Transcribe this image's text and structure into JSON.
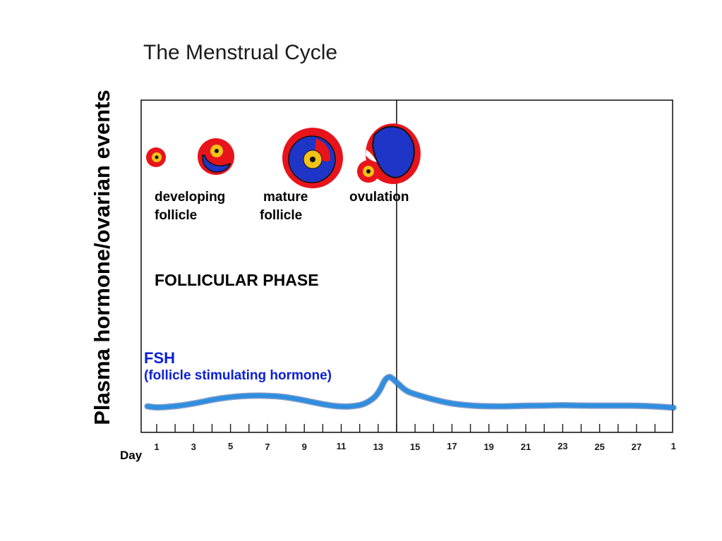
{
  "title": "The Menstrual Cycle",
  "y_axis_label": "Plasma hormone/ovarian events",
  "x_axis_label": "Day",
  "stage_labels": {
    "developing": [
      "developing",
      "follicle"
    ],
    "mature": [
      "mature",
      "follicle"
    ],
    "ovulation": "ovulation"
  },
  "phase_label": "FOLLICULAR PHASE",
  "hormone": {
    "name": "FSH",
    "full_name": "(follicle stimulating hormone)"
  },
  "colors": {
    "follicle_outer": "#e8141b",
    "follicle_fluid": "#1e35c8",
    "oocyte": "#f2c21a",
    "fsh_line": "#2e8ee0",
    "fsh_label": "#0a1fd6"
  },
  "chart_data": {
    "type": "line",
    "x_ticks": [
      "1",
      "3",
      "5",
      "7",
      "9",
      "11",
      "13",
      "15",
      "17",
      "19",
      "21",
      "23",
      "25",
      "27",
      "1"
    ],
    "marker_day": 14,
    "series": [
      {
        "x": [
          0.5,
          1,
          2,
          3,
          4,
          5,
          6,
          7,
          8,
          9,
          10,
          11,
          12,
          12.5,
          13,
          13.5,
          14,
          14.5,
          15,
          16,
          17,
          18,
          19,
          20,
          21,
          22,
          23,
          24,
          25,
          26,
          27,
          28,
          29
        ],
        "y": [
          1.2,
          1.0,
          1.2,
          1.6,
          2.2,
          2.6,
          2.8,
          2.8,
          2.6,
          2.1,
          1.5,
          1.1,
          1.3,
          1.9,
          3.0,
          6.0,
          4.8,
          3.5,
          3.0,
          2.2,
          1.6,
          1.3,
          1.2,
          1.2,
          1.3,
          1.3,
          1.4,
          1.3,
          1.3,
          1.3,
          1.3,
          1.2,
          1.0
        ]
      }
    ]
  }
}
